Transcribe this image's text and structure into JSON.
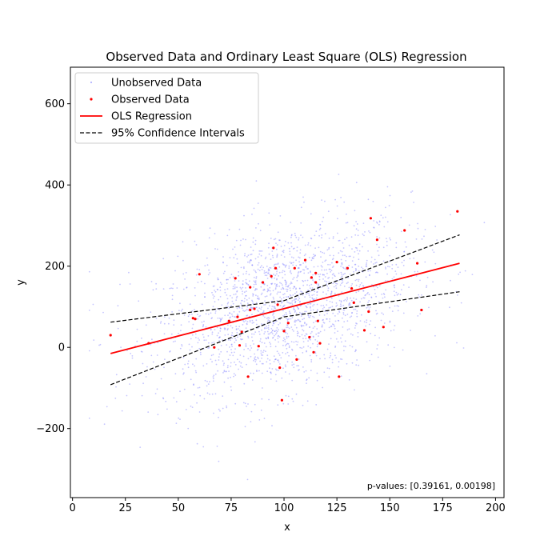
{
  "chart_data": {
    "type": "scatter",
    "title": "Observed Data and Ordinary Least Square (OLS) Regression",
    "xlabel": "x",
    "ylabel": "y",
    "xlim": [
      -1,
      204
    ],
    "ylim": [
      -370,
      690
    ],
    "xticks": [
      0,
      25,
      50,
      75,
      100,
      125,
      150,
      175,
      200
    ],
    "yticks": [
      -200,
      0,
      200,
      400,
      600
    ],
    "grid": false,
    "legend_position": "top-left",
    "legend": [
      {
        "label": "Unobserved Data",
        "kind": "points",
        "color": "#8080ff"
      },
      {
        "label": "Observed Data",
        "kind": "points",
        "color": "#ff0000"
      },
      {
        "label": "OLS Regression",
        "kind": "line",
        "color": "#ff0000"
      },
      {
        "label": "95% Confidence Intervals",
        "kind": "dashed",
        "color": "#000000"
      }
    ],
    "annotation": "p-values: [0.39161, 0.00198]",
    "unobserved": {
      "name": "Unobserved Data",
      "color": "#8080ff",
      "count": 2000,
      "x_mean": 100,
      "x_sd": 30,
      "y_intercept": -35,
      "y_slope": 1.35,
      "y_resid_sd": 100,
      "x_range": [
        8,
        196
      ],
      "y_range": [
        -340,
        670
      ]
    },
    "observed": {
      "name": "Observed Data",
      "color": "#ff0000",
      "points": [
        [
          18,
          30
        ],
        [
          36,
          10
        ],
        [
          57,
          72
        ],
        [
          58,
          70
        ],
        [
          60,
          180
        ],
        [
          67,
          0
        ],
        [
          74,
          65
        ],
        [
          77,
          170
        ],
        [
          78,
          75
        ],
        [
          79,
          5
        ],
        [
          80,
          38
        ],
        [
          83,
          -72
        ],
        [
          84,
          148
        ],
        [
          84,
          92
        ],
        [
          86,
          95
        ],
        [
          88,
          3
        ],
        [
          90,
          160
        ],
        [
          94,
          175
        ],
        [
          95,
          245
        ],
        [
          96,
          195
        ],
        [
          97,
          105
        ],
        [
          98,
          -50
        ],
        [
          99,
          -130
        ],
        [
          100,
          40
        ],
        [
          102,
          60
        ],
        [
          105,
          195
        ],
        [
          106,
          -30
        ],
        [
          110,
          215
        ],
        [
          112,
          25
        ],
        [
          113,
          172
        ],
        [
          114,
          -12
        ],
        [
          115,
          160
        ],
        [
          115,
          183
        ],
        [
          116,
          65
        ],
        [
          117,
          10
        ],
        [
          125,
          210
        ],
        [
          126,
          -72
        ],
        [
          130,
          195
        ],
        [
          132,
          145
        ],
        [
          133,
          110
        ],
        [
          138,
          42
        ],
        [
          140,
          88
        ],
        [
          141,
          318
        ],
        [
          144,
          265
        ],
        [
          147,
          50
        ],
        [
          157,
          288
        ],
        [
          163,
          207
        ],
        [
          165,
          92
        ],
        [
          182,
          335
        ]
      ]
    },
    "ols": {
      "name": "OLS Regression",
      "color": "#ff0000",
      "x": [
        18,
        183
      ],
      "y": [
        -15,
        207
      ]
    },
    "confidence_interval": {
      "name": "95% Confidence Intervals",
      "color": "#000000",
      "x": [
        18,
        100,
        183
      ],
      "upper": [
        62,
        115,
        277
      ],
      "lower": [
        -92,
        75,
        137
      ]
    }
  }
}
